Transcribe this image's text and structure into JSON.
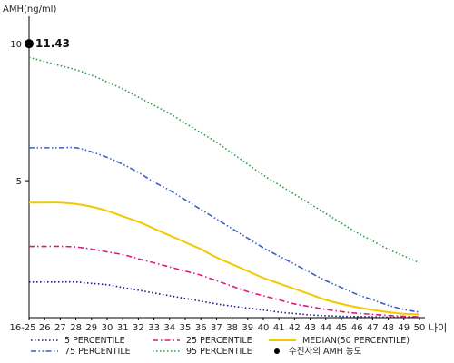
{
  "chart_data": {
    "type": "line",
    "ylabel": "AMH(ng/ml)",
    "xlabel": "나이",
    "ylim": [
      0,
      11
    ],
    "y_ticks": [
      "10",
      "5"
    ],
    "y_tick_values": [
      10,
      5
    ],
    "categories": [
      "16-25",
      "26",
      "27",
      "28",
      "29",
      "30",
      "31",
      "32",
      "33",
      "34",
      "35",
      "36",
      "37",
      "38",
      "39",
      "40",
      "41",
      "42",
      "43",
      "44",
      "45",
      "46",
      "47",
      "48",
      "49",
      "50"
    ],
    "series": [
      {
        "name": "5 PERCENTILE",
        "color": "#1a1a80",
        "style": "dotted",
        "values": [
          1.3,
          1.3,
          1.3,
          1.3,
          1.25,
          1.2,
          1.1,
          1.0,
          0.9,
          0.8,
          0.7,
          0.6,
          0.5,
          0.42,
          0.35,
          0.28,
          0.2,
          0.15,
          0.1,
          0.07,
          0.05,
          0.04,
          0.03,
          0.02,
          0.02,
          0.01
        ]
      },
      {
        "name": "25 PERCENTILE",
        "color": "#e0187c",
        "style": "dashdot",
        "values": [
          2.6,
          2.6,
          2.6,
          2.58,
          2.5,
          2.4,
          2.3,
          2.15,
          2.0,
          1.85,
          1.7,
          1.55,
          1.35,
          1.15,
          0.95,
          0.8,
          0.65,
          0.5,
          0.4,
          0.3,
          0.22,
          0.16,
          0.12,
          0.08,
          0.05,
          0.03
        ]
      },
      {
        "name": "MEDIAN(50 PERCENTILE)",
        "color": "#f4c800",
        "style": "solid",
        "values": [
          4.2,
          4.2,
          4.2,
          4.15,
          4.05,
          3.9,
          3.7,
          3.5,
          3.25,
          3.0,
          2.75,
          2.5,
          2.2,
          1.95,
          1.7,
          1.45,
          1.25,
          1.05,
          0.85,
          0.65,
          0.5,
          0.38,
          0.28,
          0.2,
          0.14,
          0.12
        ]
      },
      {
        "name": "75 PERCENTILE",
        "color": "#3a5fc8",
        "style": "dashdotdot",
        "values": [
          6.2,
          6.2,
          6.2,
          6.2,
          6.05,
          5.85,
          5.6,
          5.3,
          4.95,
          4.65,
          4.3,
          3.95,
          3.6,
          3.25,
          2.9,
          2.55,
          2.25,
          1.95,
          1.65,
          1.35,
          1.1,
          0.85,
          0.65,
          0.45,
          0.3,
          0.2
        ]
      },
      {
        "name": "95 PERCENTILE",
        "color": "#2a9a4a",
        "style": "dotted",
        "values": [
          9.5,
          9.35,
          9.2,
          9.05,
          8.85,
          8.6,
          8.35,
          8.05,
          7.75,
          7.45,
          7.1,
          6.75,
          6.4,
          6.0,
          5.6,
          5.2,
          4.85,
          4.5,
          4.15,
          3.8,
          3.45,
          3.1,
          2.8,
          2.5,
          2.25,
          2.0
        ]
      }
    ],
    "patient": {
      "name": "수진자의 AMH 농도",
      "value": 11.43,
      "value_label": "11.43",
      "color": "#000000"
    },
    "legend": [
      {
        "name": "5 PERCENTILE",
        "color": "#1a1a80",
        "style": "dotted"
      },
      {
        "name": "25 PERCENTILE",
        "color": "#e0187c",
        "style": "dashdot"
      },
      {
        "name": "MEDIAN(50 PERCENTILE)",
        "color": "#f4c800",
        "style": "solid"
      },
      {
        "name": "75 PERCENTILE",
        "color": "#3a5fc8",
        "style": "dashdotdot"
      },
      {
        "name": "95 PERCENTILE",
        "color": "#2a9a4a",
        "style": "dotted"
      },
      {
        "name": "수진자의 AMH 농도",
        "color": "#000000",
        "style": "marker"
      }
    ],
    "legend_placement": "bottom",
    "grid": false
  }
}
